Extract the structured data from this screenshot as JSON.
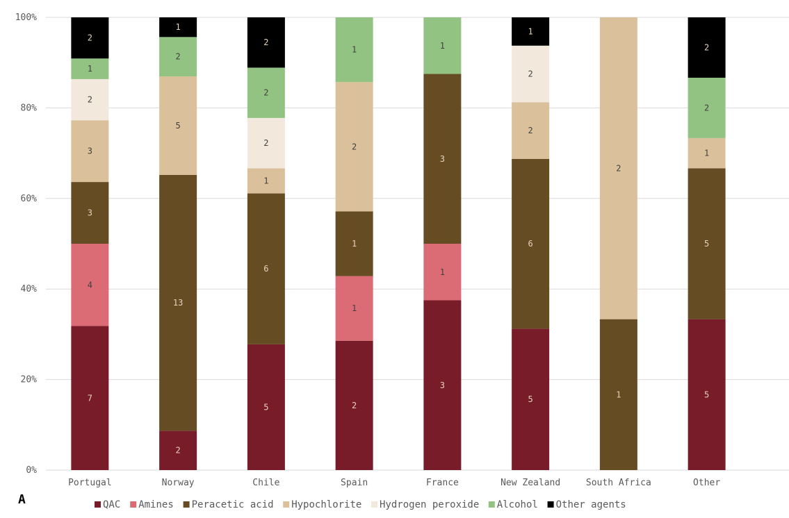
{
  "panel_label": "A",
  "chart_data": {
    "type": "bar",
    "stacked": true,
    "normalized": true,
    "categories": [
      "Portugal",
      "Norway",
      "Chile",
      "Spain",
      "France",
      "New Zealand",
      "South Africa",
      "Other"
    ],
    "series": [
      {
        "name": "QAC",
        "color": "#771c28",
        "values": [
          7,
          2,
          5,
          2,
          3,
          5,
          0,
          5
        ]
      },
      {
        "name": "Amines",
        "color": "#db6b74",
        "values": [
          4,
          0,
          0,
          1,
          1,
          0,
          0,
          0
        ]
      },
      {
        "name": "Peracetic acid",
        "color": "#654c23",
        "values": [
          3,
          13,
          6,
          1,
          3,
          6,
          1,
          5
        ]
      },
      {
        "name": "Hypochlorite",
        "color": "#dbc19b",
        "values": [
          3,
          5,
          1,
          2,
          0,
          2,
          2,
          1
        ]
      },
      {
        "name": "Hydrogen peroxide",
        "color": "#f2e9dc",
        "values": [
          2,
          0,
          2,
          0,
          0,
          2,
          0,
          0
        ]
      },
      {
        "name": "Alcohol",
        "color": "#92c383",
        "values": [
          1,
          2,
          2,
          1,
          1,
          0,
          0,
          2
        ]
      },
      {
        "name": "Other agents",
        "color": "#000000",
        "values": [
          2,
          1,
          2,
          0,
          0,
          1,
          0,
          2
        ]
      }
    ],
    "y_ticks": [
      "0%",
      "20%",
      "40%",
      "60%",
      "80%",
      "100%"
    ],
    "ylim": [
      0,
      100
    ],
    "grid": true,
    "legend_position": "bottom"
  }
}
